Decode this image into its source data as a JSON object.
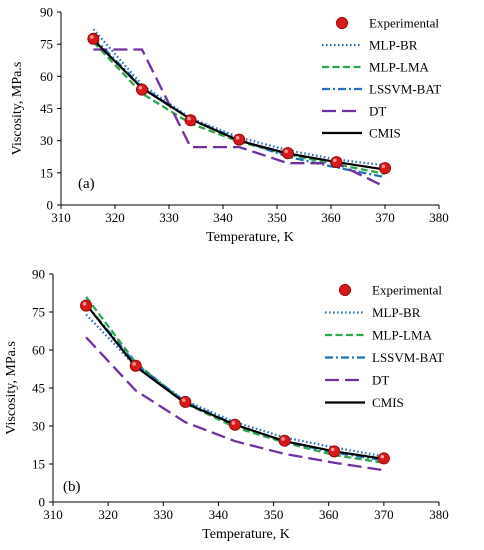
{
  "chart_data": [
    {
      "type": "line",
      "panel_label": "(a)",
      "xlabel": "Temperature, K",
      "ylabel": "Viscosity, MPa.s",
      "xlim": [
        310,
        380
      ],
      "ylim": [
        0,
        90
      ],
      "xticks": [
        310,
        320,
        330,
        340,
        350,
        360,
        370,
        380
      ],
      "yticks": [
        0,
        15,
        30,
        45,
        60,
        75,
        90
      ],
      "grid": false,
      "legend_position": "top-right",
      "series": [
        {
          "name": "Experimental",
          "style": "marker",
          "color": "#d7191c",
          "x": [
            316,
            325,
            334,
            343,
            352,
            361,
            370
          ],
          "y": [
            77.5,
            53.8,
            39.5,
            30.5,
            24.2,
            20.0,
            17.2
          ]
        },
        {
          "name": "MLP-BR",
          "style": "dotted",
          "color": "#2e75b6",
          "x": [
            316,
            325,
            334,
            343,
            352,
            361,
            370
          ],
          "y": [
            82.0,
            56.0,
            40.5,
            31.5,
            25.5,
            21.2,
            18.5
          ]
        },
        {
          "name": "MLP-LMA",
          "style": "dashed",
          "color": "#2aa84a",
          "x": [
            316,
            325,
            334,
            343,
            352,
            361,
            370
          ],
          "y": [
            76.0,
            52.0,
            38.0,
            29.5,
            23.5,
            19.0,
            14.5
          ]
        },
        {
          "name": "LSSVM-BAT",
          "style": "dashdot",
          "color": "#1f6fbf",
          "x": [
            316,
            325,
            334,
            343,
            352,
            361,
            370
          ],
          "y": [
            78.0,
            55.0,
            40.0,
            30.5,
            22.5,
            17.5,
            13.0
          ]
        },
        {
          "name": "DT",
          "style": "longdash",
          "color": "#7030a0",
          "x": [
            316,
            325,
            334,
            343,
            352,
            361,
            370
          ],
          "y": [
            72.5,
            72.5,
            27.0,
            27.0,
            19.5,
            19.5,
            8.5
          ]
        },
        {
          "name": "CMIS",
          "style": "solid",
          "color": "#000000",
          "x": [
            316,
            325,
            334,
            343,
            352,
            361,
            370
          ],
          "y": [
            77.0,
            54.5,
            40.0,
            30.0,
            24.0,
            20.0,
            16.5
          ]
        }
      ]
    },
    {
      "type": "line",
      "panel_label": "(b)",
      "xlabel": "Temperature, K",
      "ylabel": "Viscosity, MPa.s",
      "xlim": [
        310,
        380
      ],
      "ylim": [
        0,
        90
      ],
      "xticks": [
        310,
        320,
        330,
        340,
        350,
        360,
        370,
        380
      ],
      "yticks": [
        0,
        15,
        30,
        45,
        60,
        75,
        90
      ],
      "grid": false,
      "legend_position": "top-right",
      "series": [
        {
          "name": "Experimental",
          "style": "marker",
          "color": "#d7191c",
          "x": [
            316,
            325,
            334,
            343,
            352,
            361,
            370
          ],
          "y": [
            77.5,
            53.8,
            39.5,
            30.5,
            24.2,
            20.0,
            17.2
          ]
        },
        {
          "name": "MLP-BR",
          "style": "dotted",
          "color": "#2e75b6",
          "x": [
            316,
            325,
            334,
            343,
            352,
            361,
            370
          ],
          "y": [
            74.0,
            53.5,
            40.0,
            31.5,
            25.5,
            21.5,
            18.0
          ]
        },
        {
          "name": "MLP-LMA",
          "style": "dashed",
          "color": "#2aa84a",
          "x": [
            316,
            325,
            334,
            343,
            352,
            361,
            370
          ],
          "y": [
            81.0,
            55.0,
            39.0,
            29.5,
            23.5,
            18.5,
            15.5
          ]
        },
        {
          "name": "LSSVM-BAT",
          "style": "dashdot",
          "color": "#1f6fbf",
          "x": [
            316,
            325,
            334,
            343,
            352,
            361,
            370
          ],
          "y": [
            78.0,
            54.5,
            39.5,
            30.5,
            24.0,
            19.5,
            16.5
          ]
        },
        {
          "name": "DT",
          "style": "longdash",
          "color": "#7030a0",
          "x": [
            316,
            325,
            334,
            343,
            352,
            361,
            370
          ],
          "y": [
            65.0,
            44.0,
            31.5,
            24.0,
            19.0,
            15.5,
            12.5
          ]
        },
        {
          "name": "CMIS",
          "style": "solid",
          "color": "#000000",
          "x": [
            316,
            325,
            334,
            343,
            352,
            361,
            370
          ],
          "y": [
            78.0,
            53.5,
            39.0,
            30.5,
            24.0,
            20.0,
            17.0
          ]
        }
      ]
    }
  ]
}
